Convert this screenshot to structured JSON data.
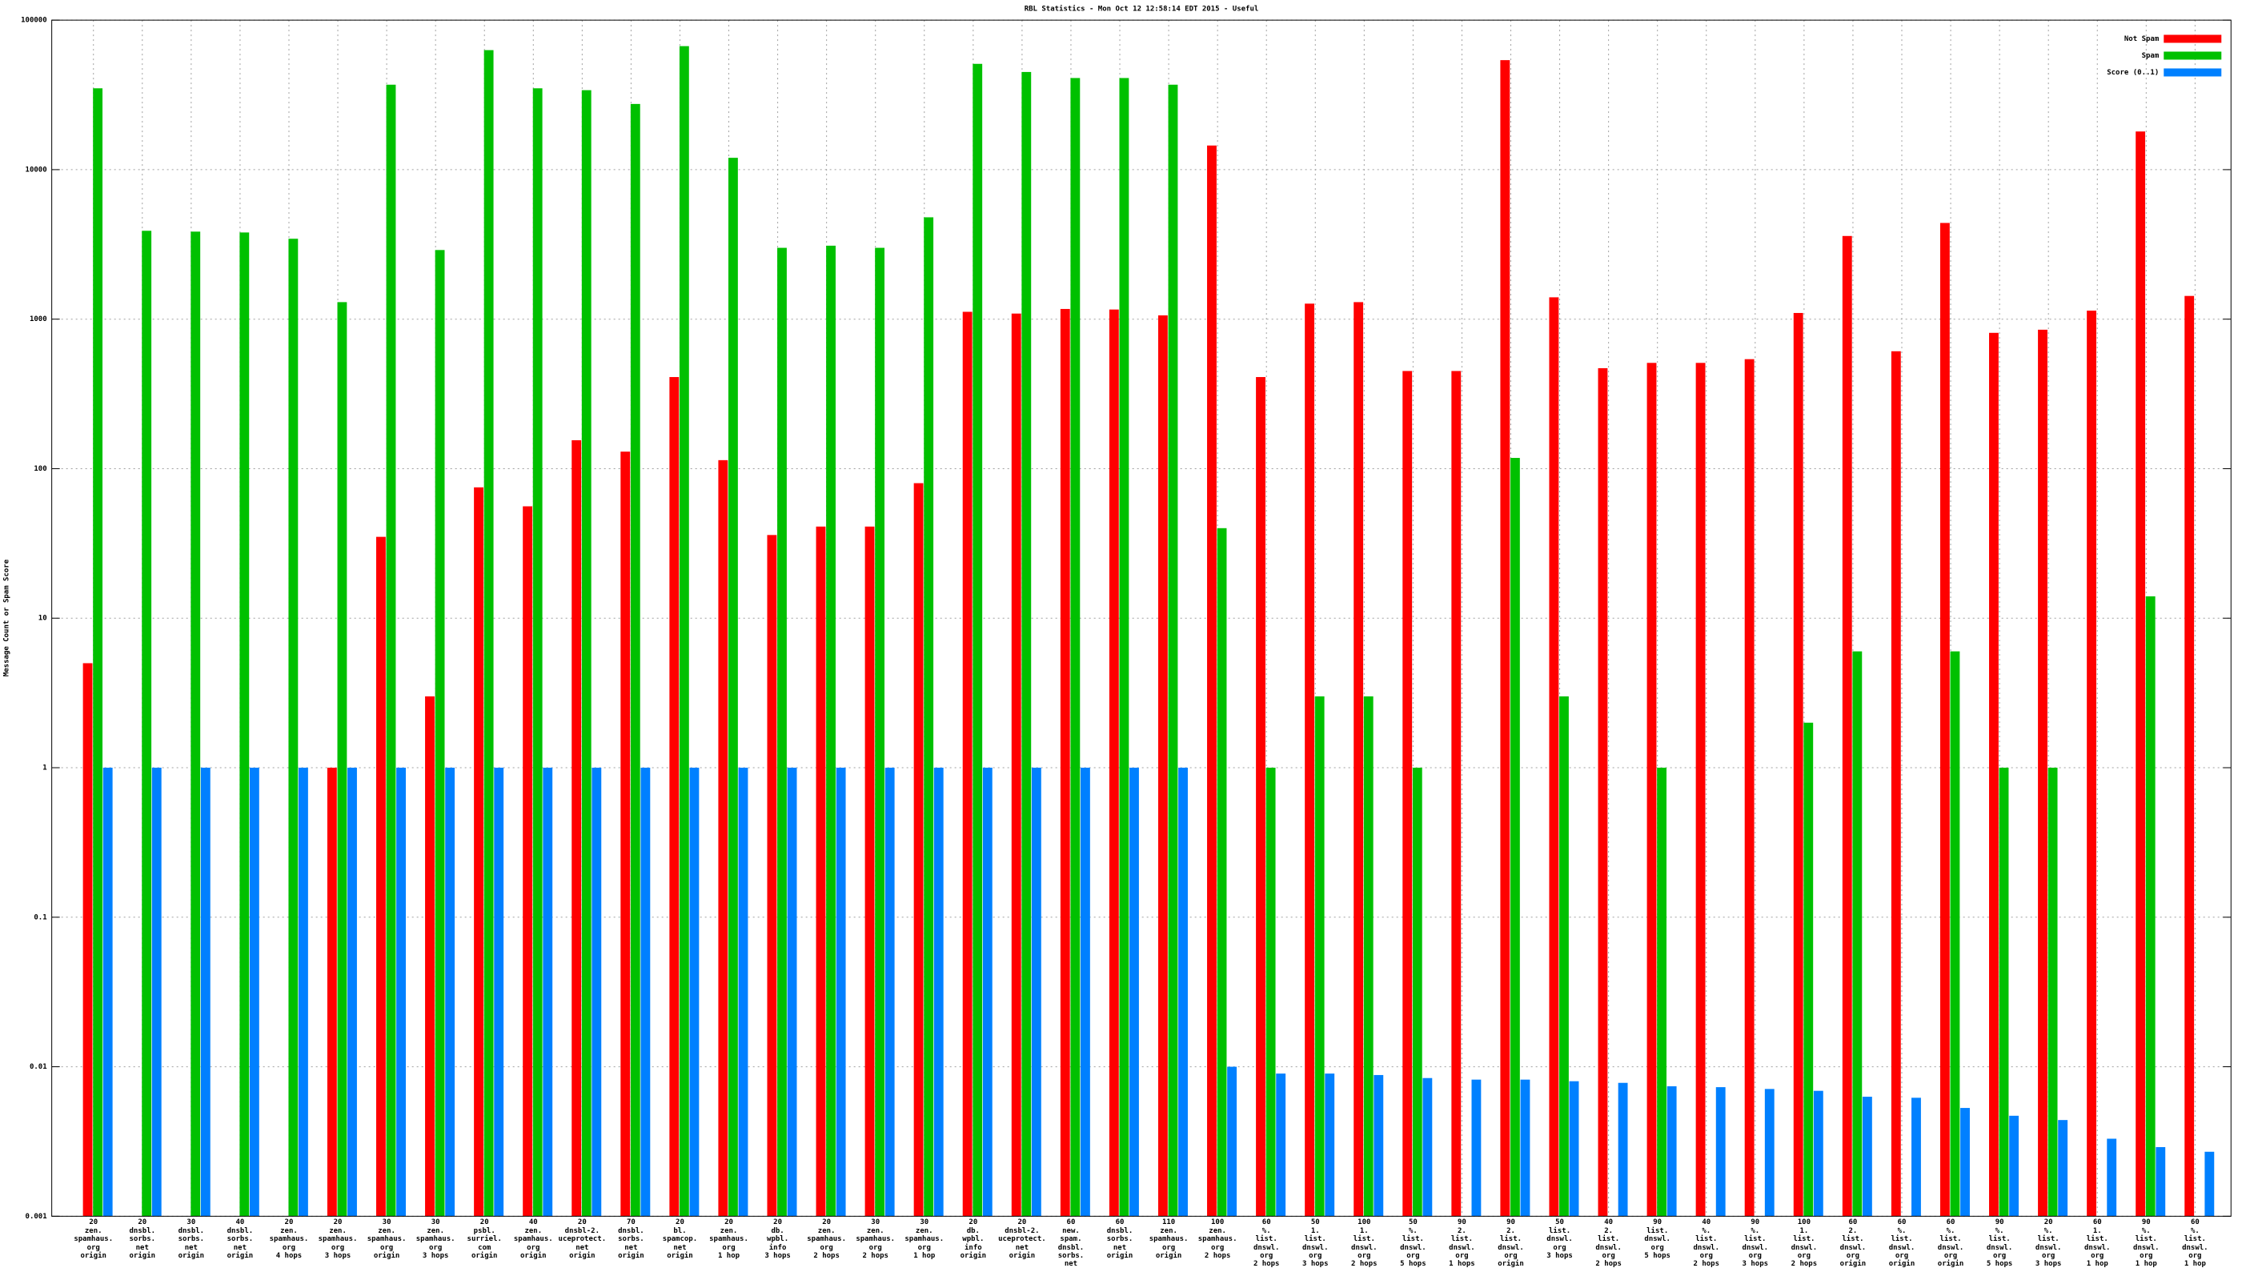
{
  "chart_data": {
    "type": "bar",
    "title": "RBL Statistics - Mon Oct 12 12:58:14 EDT 2015 - Useful",
    "y_label": "Message Count or Spam Score",
    "log_scale": true,
    "grid": true,
    "legend": "upper right",
    "ylim": [
      0.001,
      100000
    ],
    "yticks": [
      0.001,
      0.01,
      0.1,
      1,
      10,
      100,
      1000,
      10000,
      100000
    ],
    "categories": [
      "20\nzen.\nspamhaus.\norg\norigin",
      "20\ndnsbl.\nsorbs.\nnet\norigin",
      "30\ndnsbl.\nsorbs.\nnet\norigin",
      "40\ndnsbl.\nsorbs.\nnet\norigin",
      "20\nzen.\nspamhaus.\norg\n4 hops",
      "20\nzen.\nspamhaus.\norg\n3 hops",
      "30\nzen.\nspamhaus.\norg\norigin",
      "30\nzen.\nspamhaus.\norg\n3 hops",
      "20\npsbl.\nsurriel.\ncom\norigin",
      "40\nzen.\nspamhaus.\norg\norigin",
      "20\ndnsbl-2.\nuceprotect.\nnet\norigin",
      "70\ndnsbl.\nsorbs.\nnet\norigin",
      "20\nbl.\nspamcop.\nnet\norigin",
      "20\nzen.\nspamhaus.\norg\n1 hop",
      "20\ndb.\nwpbl.\ninfo\n3 hops",
      "20\nzen.\nspamhaus.\norg\n2 hops",
      "30\nzen.\nspamhaus.\norg\n2 hops",
      "30\nzen.\nspamhaus.\norg\n1 hop",
      "20\ndb.\nwpbl.\ninfo\norigin",
      "20\ndnsbl-2.\nuceprotect.\nnet\norigin",
      "60\nnew.\nspam.\ndnsbl.\nsorbs.\nnet\norigin",
      "60\ndnsbl.\nsorbs.\nnet\norigin",
      "110\nzen.\nspamhaus.\norg\norigin",
      "100\nzen.\nspamhaus.\norg\n2 hops",
      "60\n%.\nlist.\ndnswl.\norg\n2 hops",
      "50\n1.\nlist.\ndnswl.\norg\n3 hops",
      "100\n1.\nlist.\ndnswl.\norg\n2 hops",
      "50\n%.\nlist.\ndnswl.\norg\n5 hops",
      "90\n2.\nlist.\ndnswl.\norg\n1 hops",
      "90\n2.\nlist.\ndnswl.\norg\norigin",
      "50\nlist.\ndnswl.\norg\n3 hops",
      "40\n2.\nlist.\ndnswl.\norg\n2 hops",
      "90\nlist.\ndnswl.\norg\n5 hops",
      "40\n%.\nlist.\ndnswl.\norg\n2 hops",
      "90\n%.\nlist.\ndnswl.\norg\n3 hops",
      "100\n1.\nlist.\ndnswl.\norg\n2 hops",
      "60\n2.\nlist.\ndnswl.\norg\norigin",
      "60\n%.\nlist.\ndnswl.\norg\norigin",
      "60\n%.\nlist.\ndnswl.\norg\norigin",
      "90\n%.\nlist.\ndnswl.\norg\n5 hops",
      "20\n%.\nlist.\ndnswl.\norg\n3 hops",
      "60\n1.\nlist.\ndnswl.\norg\n1 hop",
      "90\n%.\nlist.\ndnswl.\norg\n1 hop",
      "60\n%.\nlist.\ndnswl.\norg\n1 hop"
    ],
    "series": [
      {
        "name": "Not Spam",
        "color": "#ff0000",
        "values": [
          5,
          null,
          null,
          null,
          null,
          1,
          35,
          3,
          75,
          56,
          155,
          130,
          410,
          114,
          36,
          41,
          41,
          80,
          1120,
          1090,
          1170,
          1160,
          1060,
          14500,
          410,
          1270,
          1300,
          450,
          450,
          54000,
          1400,
          470,
          510,
          510,
          540,
          1100,
          3600,
          610,
          4400,
          810,
          850,
          1140,
          18000,
          1430
        ]
      },
      {
        "name": "Spam",
        "color": "#00c000",
        "values": [
          35000,
          3900,
          3850,
          3800,
          3450,
          1300,
          37000,
          2900,
          63000,
          35000,
          34000,
          27500,
          67000,
          12000,
          3000,
          3100,
          3000,
          4800,
          51000,
          45000,
          41000,
          41000,
          37000,
          40,
          1,
          3,
          3,
          1,
          null,
          118,
          3,
          null,
          1,
          null,
          null,
          2,
          6,
          null,
          6,
          1,
          1,
          null,
          14,
          null
        ]
      },
      {
        "name": "Score (0..1)",
        "color": "#0080ff",
        "values": [
          1,
          1,
          1,
          1,
          1,
          1,
          1,
          1,
          1,
          1,
          1,
          1,
          1,
          1,
          1,
          1,
          1,
          1,
          1,
          1,
          1,
          1,
          1,
          0.01,
          0.009,
          0.009,
          0.0088,
          0.0084,
          0.0082,
          0.0082,
          0.008,
          0.0078,
          0.0074,
          0.0073,
          0.0071,
          0.0069,
          0.0063,
          0.0062,
          0.0053,
          0.0047,
          0.0044,
          0.0033,
          0.0029,
          0.0027
        ]
      }
    ]
  }
}
